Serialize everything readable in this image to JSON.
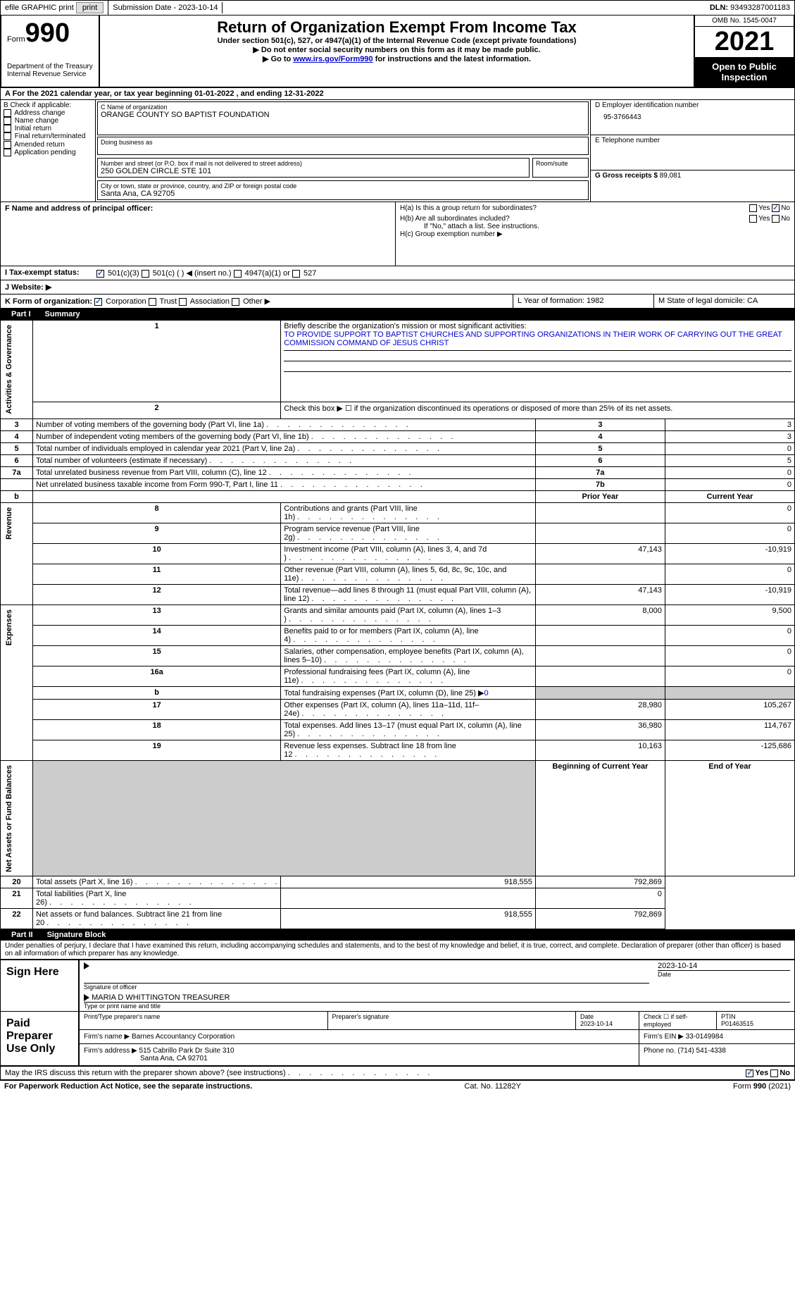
{
  "topbar": {
    "efile": "efile GRAPHIC print",
    "submission": "Submission Date - 2023-10-14",
    "dln_label": "DLN:",
    "dln": "93493287001183"
  },
  "header": {
    "form_label": "Form",
    "form_num": "990",
    "dept": "Department of the Treasury",
    "irs": "Internal Revenue Service",
    "title": "Return of Organization Exempt From Income Tax",
    "sub1": "Under section 501(c), 527, or 4947(a)(1) of the Internal Revenue Code (except private foundations)",
    "sub2": "▶ Do not enter social security numbers on this form as it may be made public.",
    "sub3_pre": "▶ Go to ",
    "sub3_link": "www.irs.gov/Form990",
    "sub3_post": " for instructions and the latest information.",
    "omb": "OMB No. 1545-0047",
    "year": "2021",
    "open": "Open to Public Inspection"
  },
  "rowA": "A For the 2021 calendar year, or tax year beginning 01-01-2022    , and ending 12-31-2022",
  "sectionB": {
    "label": "B Check if applicable:",
    "opts": [
      "Address change",
      "Name change",
      "Initial return",
      "Final return/terminated",
      "Amended return",
      "Application pending"
    ]
  },
  "sectionC": {
    "name_label": "C Name of organization",
    "name": "ORANGE COUNTY SO BAPTIST FOUNDATION",
    "dba_label": "Doing business as",
    "street_label": "Number and street (or P.O. box if mail is not delivered to street address)",
    "room_label": "Room/suite",
    "street": "250 GOLDEN CIRCLE STE 101",
    "city_label": "City or town, state or province, country, and ZIP or foreign postal code",
    "city": "Santa Ana, CA  92705"
  },
  "sectionD": {
    "ein_label": "D Employer identification number",
    "ein": "95-3766443",
    "tel_label": "E Telephone number",
    "gross_label": "G Gross receipts $",
    "gross": "89,081"
  },
  "sectionF": {
    "label": "F Name and address of principal officer:"
  },
  "sectionH": {
    "ha": "H(a)  Is this a group return for subordinates?",
    "hb": "H(b)  Are all subordinates included?",
    "hb_note": "If \"No,\" attach a list. See instructions.",
    "hc": "H(c)  Group exemption number ▶",
    "yes": "Yes",
    "no": "No"
  },
  "taxExempt": {
    "label": "I    Tax-exempt status:",
    "opts": [
      "501(c)(3)",
      "501(c) (  ) ◀ (insert no.)",
      "4947(a)(1) or",
      "527"
    ]
  },
  "website": "J   Website: ▶",
  "rowK": {
    "label": "K Form of organization:",
    "opts": [
      "Corporation",
      "Trust",
      "Association",
      "Other ▶"
    ],
    "L": "L Year of formation: 1982",
    "M": "M State of legal domicile: CA"
  },
  "part1": {
    "hdr": "Part I",
    "title": "Summary",
    "q1": "Briefly describe the organization's mission or most significant activities:",
    "mission": "TO PROVIDE SUPPORT TO BAPTIST CHURCHES AND SUPPORTING ORGANIZATIONS IN THEIR WORK OF CARRYING OUT THE GREAT COMMISSION COMMAND OF JESUS CHRIST",
    "q2": "Check this box ▶ ☐ if the organization discontinued its operations or disposed of more than 25% of its net assets.",
    "rows": [
      {
        "n": "3",
        "t": "Number of voting members of the governing body (Part VI, line 1a)",
        "box": "3",
        "v": "3"
      },
      {
        "n": "4",
        "t": "Number of independent voting members of the governing body (Part VI, line 1b)",
        "box": "4",
        "v": "3"
      },
      {
        "n": "5",
        "t": "Total number of individuals employed in calendar year 2021 (Part V, line 2a)",
        "box": "5",
        "v": "0"
      },
      {
        "n": "6",
        "t": "Total number of volunteers (estimate if necessary)",
        "box": "6",
        "v": "5"
      },
      {
        "n": "7a",
        "t": "Total unrelated business revenue from Part VIII, column (C), line 12",
        "box": "7a",
        "v": "0"
      },
      {
        "n": "",
        "t": "Net unrelated business taxable income from Form 990-T, Part I, line 11",
        "box": "7b",
        "v": "0"
      }
    ],
    "hdr_prior": "Prior Year",
    "hdr_curr": "Current Year",
    "revenue": [
      {
        "n": "8",
        "t": "Contributions and grants (Part VIII, line 1h)",
        "p": "",
        "c": "0"
      },
      {
        "n": "9",
        "t": "Program service revenue (Part VIII, line 2g)",
        "p": "",
        "c": "0"
      },
      {
        "n": "10",
        "t": "Investment income (Part VIII, column (A), lines 3, 4, and 7d )",
        "p": "47,143",
        "c": "-10,919"
      },
      {
        "n": "11",
        "t": "Other revenue (Part VIII, column (A), lines 5, 6d, 8c, 9c, 10c, and 11e)",
        "p": "",
        "c": "0"
      },
      {
        "n": "12",
        "t": "Total revenue—add lines 8 through 11 (must equal Part VIII, column (A), line 12)",
        "p": "47,143",
        "c": "-10,919"
      }
    ],
    "expenses": [
      {
        "n": "13",
        "t": "Grants and similar amounts paid (Part IX, column (A), lines 1–3 )",
        "p": "8,000",
        "c": "9,500"
      },
      {
        "n": "14",
        "t": "Benefits paid to or for members (Part IX, column (A), line 4)",
        "p": "",
        "c": "0"
      },
      {
        "n": "15",
        "t": "Salaries, other compensation, employee benefits (Part IX, column (A), lines 5–10)",
        "p": "",
        "c": "0"
      },
      {
        "n": "16a",
        "t": "Professional fundraising fees (Part IX, column (A), line 11e)",
        "p": "",
        "c": "0"
      },
      {
        "n": "b",
        "t": "Total fundraising expenses (Part IX, column (D), line 25) ▶0",
        "p": "SHADE",
        "c": "SHADE"
      },
      {
        "n": "17",
        "t": "Other expenses (Part IX, column (A), lines 11a–11d, 11f–24e)",
        "p": "28,980",
        "c": "105,267"
      },
      {
        "n": "18",
        "t": "Total expenses. Add lines 13–17 (must equal Part IX, column (A), line 25)",
        "p": "36,980",
        "c": "114,767"
      },
      {
        "n": "19",
        "t": "Revenue less expenses. Subtract line 18 from line 12",
        "p": "10,163",
        "c": "-125,686"
      }
    ],
    "hdr_beg": "Beginning of Current Year",
    "hdr_end": "End of Year",
    "netassets": [
      {
        "n": "20",
        "t": "Total assets (Part X, line 16)",
        "p": "918,555",
        "c": "792,869"
      },
      {
        "n": "21",
        "t": "Total liabilities (Part X, line 26)",
        "p": "",
        "c": "0"
      },
      {
        "n": "22",
        "t": "Net assets or fund balances. Subtract line 21 from line 20",
        "p": "918,555",
        "c": "792,869"
      }
    ],
    "side_labels": [
      "Activities & Governance",
      "Revenue",
      "Expenses",
      "Net Assets or Fund Balances"
    ]
  },
  "part2": {
    "hdr": "Part II",
    "title": "Signature Block",
    "penalty": "Under penalties of perjury, I declare that I have examined this return, including accompanying schedules and statements, and to the best of my knowledge and belief, it is true, correct, and complete. Declaration of preparer (other than officer) is based on all information of which preparer has any knowledge.",
    "sign_here": "Sign Here",
    "sig_officer": "Signature of officer",
    "sig_date": "2023-10-14",
    "date_label": "Date",
    "officer_name": "MARIA D WHITTINGTON  TREASURER",
    "type_name": "Type or print name and title",
    "paid": "Paid Preparer Use Only",
    "prep_name_label": "Print/Type preparer's name",
    "prep_sig_label": "Preparer's signature",
    "prep_date": "2023-10-14",
    "check_self": "Check ☐ if self-employed",
    "ptin_label": "PTIN",
    "ptin": "P01463515",
    "firm_name_label": "Firm's name    ▶",
    "firm_name": "Barnes Accountancy Corporation",
    "firm_ein_label": "Firm's EIN ▶",
    "firm_ein": "33-0149984",
    "firm_addr_label": "Firm's address ▶",
    "firm_addr": "515 Cabrillo Park Dr Suite 310",
    "firm_city": "Santa Ana, CA  92701",
    "phone_label": "Phone no.",
    "phone": "(714) 541-4338",
    "discuss": "May the IRS discuss this return with the preparer shown above? (see instructions)"
  },
  "footer": {
    "left": "For Paperwork Reduction Act Notice, see the separate instructions.",
    "mid": "Cat. No. 11282Y",
    "right": "Form 990 (2021)"
  }
}
